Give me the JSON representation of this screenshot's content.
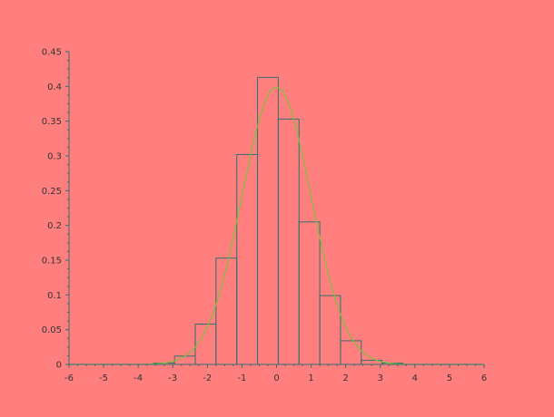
{
  "chart_data": {
    "type": "bar",
    "title": "",
    "xlabel": "",
    "ylabel": "",
    "xlim": [
      -6,
      6
    ],
    "ylim": [
      0,
      0.45
    ],
    "grid": false,
    "legend": "none",
    "x_ticks": [
      {
        "value": -6,
        "label": "-6"
      },
      {
        "value": -5,
        "label": "-5"
      },
      {
        "value": -4,
        "label": "-4"
      },
      {
        "value": -3,
        "label": "-3"
      },
      {
        "value": -2,
        "label": "-2"
      },
      {
        "value": -1,
        "label": "-1"
      },
      {
        "value": 0,
        "label": "0"
      },
      {
        "value": 1,
        "label": "1"
      },
      {
        "value": 2,
        "label": "2"
      },
      {
        "value": 3,
        "label": "3"
      },
      {
        "value": 4,
        "label": "4"
      },
      {
        "value": 5,
        "label": "5"
      },
      {
        "value": 6,
        "label": "6"
      }
    ],
    "y_ticks": [
      {
        "value": 0,
        "label": "0"
      },
      {
        "value": 0.05,
        "label": "0.05"
      },
      {
        "value": 0.1,
        "label": "0.1"
      },
      {
        "value": 0.15,
        "label": "0.15"
      },
      {
        "value": 0.2,
        "label": "0.2"
      },
      {
        "value": 0.25,
        "label": "0.25"
      },
      {
        "value": 0.3,
        "label": "0.3"
      },
      {
        "value": 0.35,
        "label": "0.35"
      },
      {
        "value": 0.4,
        "label": "0.4"
      },
      {
        "value": 0.45,
        "label": "0.45"
      }
    ],
    "histogram": {
      "bin_edges": [
        -3.55,
        -2.95,
        -2.35,
        -1.75,
        -1.15,
        -0.55,
        0.05,
        0.65,
        1.25,
        1.85,
        2.45,
        3.05,
        3.65
      ],
      "values": [
        0.002,
        0.012,
        0.058,
        0.153,
        0.302,
        0.413,
        0.353,
        0.205,
        0.099,
        0.034,
        0.006,
        0.002
      ]
    },
    "curve": {
      "name": "",
      "function": "normal_pdf",
      "mean": 0,
      "std": 1,
      "x_range": [
        -6,
        6
      ]
    },
    "colors": {
      "background": "#ff7f7f",
      "axis": "#2f6f6f",
      "bar_stroke": "#2f6f6f",
      "curve": "#7fbf3f",
      "tick_text": "#333333"
    }
  }
}
